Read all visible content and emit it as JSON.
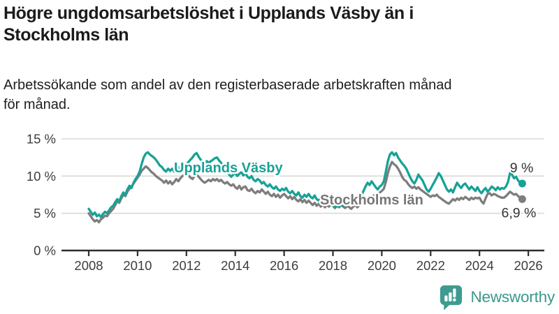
{
  "header": {
    "title_lines": [
      "Högre ungdomsarbetslöshet i Upplands Väsby än i",
      "Stockholms län"
    ],
    "subtitle_lines": [
      "Arbetssökande som andel av den registerbaserade arbetskraften månad",
      "för månad."
    ]
  },
  "footer": {
    "brand": "Newsworthy",
    "logo_icon": "bar-chart-speech-bubble-icon"
  },
  "colors": {
    "accent_teal": "#17a296",
    "series_gray": "#7d7d7d",
    "grid": "#dadada",
    "axis": "#2e2e2e",
    "title_text": "#1b1b1b",
    "tick_text": "#3d3d3d",
    "logo_teal": "#3e9b8f"
  },
  "chart_data": {
    "type": "line",
    "title": "Högre ungdomsarbetslöshet i Upplands Väsby än i Stockholms län",
    "subtitle": "Arbetssökande som andel av den registerbaserade arbetskraften månad för månad.",
    "frequency": "monthly",
    "start_year": 2008,
    "end_point": "2025-10",
    "ylim": [
      0,
      15
    ],
    "grid": "horizontal",
    "legend_position": "inline-labels",
    "y_ticks": [
      {
        "value": 0,
        "label": "0 %"
      },
      {
        "value": 5,
        "label": "5 %"
      },
      {
        "value": 10,
        "label": "10 %"
      },
      {
        "value": 15,
        "label": "15 %"
      }
    ],
    "x_ticks": [
      {
        "value": 2008,
        "label": "2008"
      },
      {
        "value": 2010,
        "label": "2010"
      },
      {
        "value": 2012,
        "label": "2012"
      },
      {
        "value": 2014,
        "label": "2014"
      },
      {
        "value": 2016,
        "label": "2016"
      },
      {
        "value": 2018,
        "label": "2018"
      },
      {
        "value": 2020,
        "label": "2020"
      },
      {
        "value": 2022,
        "label": "2022"
      },
      {
        "value": 2024,
        "label": "2024"
      },
      {
        "value": 2026,
        "label": "2026"
      }
    ],
    "series": [
      {
        "name": "Upplands Väsby",
        "color": "#17a296",
        "end_label": "9 %",
        "end_value": 9.0,
        "values": [
          5.6,
          5.2,
          4.8,
          5.1,
          4.6,
          4.8,
          4.5,
          4.9,
          5.2,
          5.0,
          5.4,
          5.8,
          6.0,
          6.5,
          6.9,
          6.6,
          7.3,
          7.8,
          7.5,
          8.2,
          8.7,
          8.4,
          9.1,
          9.6,
          10.0,
          10.6,
          11.6,
          12.5,
          13.0,
          13.2,
          12.9,
          12.7,
          12.5,
          12.2,
          11.8,
          11.4,
          11.2,
          10.8,
          10.6,
          11.0,
          10.7,
          11.0,
          10.6,
          10.9,
          11.2,
          10.8,
          11.1,
          11.4,
          11.6,
          11.9,
          12.2,
          12.5,
          12.9,
          13.1,
          12.6,
          12.2,
          11.9,
          11.7,
          12.0,
          11.8,
          12.0,
          12.2,
          12.4,
          12.5,
          12.1,
          11.8,
          11.4,
          11.0,
          10.6,
          10.2,
          9.9,
          10.2,
          10.4,
          10.0,
          10.3,
          10.5,
          10.1,
          10.4,
          9.9,
          9.7,
          10.0,
          9.5,
          9.3,
          9.6,
          9.4,
          9.0,
          9.2,
          8.8,
          8.6,
          8.9,
          8.5,
          8.3,
          8.6,
          8.2,
          8.0,
          8.3,
          8.1,
          8.4,
          7.9,
          7.7,
          8.0,
          7.6,
          7.4,
          7.8,
          7.3,
          7.1,
          7.5,
          7.2,
          7.6,
          7.2,
          7.0,
          7.4,
          6.9,
          6.7,
          7.1,
          6.6,
          6.4,
          6.8,
          6.3,
          6.1,
          6.3,
          5.8,
          6.1,
          5.9,
          6.2,
          6.0,
          6.3,
          6.1,
          6.4,
          6.2,
          6.5,
          6.3,
          6.6,
          6.9,
          7.4,
          8.0,
          8.6,
          9.1,
          8.8,
          9.3,
          8.9,
          8.5,
          8.2,
          8.6,
          8.8,
          9.3,
          10.6,
          12.0,
          12.9,
          13.2,
          12.8,
          13.1,
          12.5,
          12.1,
          11.7,
          11.4,
          11.0,
          10.4,
          9.8,
          9.3,
          9.0,
          9.5,
          10.2,
          9.8,
          9.4,
          8.8,
          8.2,
          7.9,
          8.3,
          8.8,
          9.3,
          9.8,
          10.4,
          10.0,
          9.4,
          8.8,
          8.2,
          7.9,
          8.2,
          7.8,
          8.5,
          9.1,
          8.7,
          8.4,
          8.8,
          9.0,
          8.6,
          8.2,
          8.6,
          8.3,
          8.0,
          8.5,
          8.0,
          7.7,
          8.1,
          8.4,
          7.9,
          8.2,
          8.6,
          8.4,
          8.1,
          8.5,
          8.2,
          8.4,
          8.3,
          8.6,
          9.2,
          10.4,
          10.2,
          9.7,
          9.9,
          9.4,
          9.1,
          9.0
        ]
      },
      {
        "name": "Stockholms län",
        "color": "#7d7d7d",
        "end_label": "6,9 %",
        "end_value": 6.9,
        "values": [
          5.0,
          4.6,
          4.2,
          3.9,
          4.1,
          3.8,
          4.2,
          4.4,
          4.7,
          4.6,
          5.0,
          5.3,
          5.6,
          6.1,
          6.6,
          6.4,
          7.0,
          7.5,
          7.3,
          7.9,
          8.3,
          8.6,
          9.0,
          9.4,
          9.8,
          10.2,
          10.7,
          11.0,
          11.3,
          11.1,
          10.8,
          10.5,
          10.3,
          10.0,
          9.8,
          9.6,
          9.4,
          9.1,
          9.4,
          9.0,
          9.3,
          8.9,
          9.2,
          9.6,
          9.3,
          9.7,
          10.0,
          10.2,
          10.4,
          10.1,
          9.8,
          9.6,
          10.0,
          10.2,
          9.9,
          9.6,
          9.3,
          9.1,
          9.3,
          9.5,
          9.3,
          9.6,
          9.4,
          9.6,
          9.3,
          9.5,
          9.2,
          9.0,
          9.2,
          8.9,
          8.7,
          8.9,
          8.5,
          8.3,
          8.7,
          8.2,
          8.5,
          8.6,
          8.1,
          8.0,
          8.3,
          7.9,
          7.7,
          8.0,
          7.8,
          8.2,
          7.9,
          7.6,
          7.9,
          7.5,
          7.3,
          7.6,
          7.2,
          7.5,
          7.1,
          7.4,
          7.6,
          7.3,
          7.0,
          7.3,
          6.9,
          7.2,
          6.8,
          6.6,
          6.9,
          6.5,
          6.8,
          6.4,
          6.7,
          6.4,
          6.1,
          6.4,
          6.0,
          6.3,
          5.9,
          6.2,
          5.8,
          6.1,
          5.9,
          6.2,
          6.0,
          5.7,
          6.0,
          5.8,
          6.1,
          5.9,
          5.7,
          6.0,
          5.8,
          5.6,
          5.9,
          6.1,
          5.8,
          6.1,
          6.4,
          6.2,
          6.6,
          6.9,
          6.7,
          7.1,
          7.4,
          7.2,
          7.6,
          7.8,
          8.0,
          8.3,
          9.2,
          10.4,
          11.3,
          11.9,
          11.6,
          11.4,
          11.0,
          10.5,
          9.9,
          9.5,
          9.3,
          8.9,
          8.6,
          8.4,
          8.6,
          8.3,
          8.5,
          8.2,
          8.0,
          7.8,
          7.6,
          7.4,
          7.2,
          7.4,
          7.3,
          7.5,
          7.2,
          7.0,
          6.8,
          6.6,
          6.4,
          6.3,
          6.6,
          6.9,
          6.7,
          7.0,
          6.8,
          7.1,
          6.9,
          7.2,
          7.0,
          6.8,
          7.1,
          6.9,
          7.1,
          7.0,
          7.1,
          6.6,
          6.3,
          7.0,
          7.6,
          7.7,
          7.4,
          7.6,
          7.5,
          7.3,
          7.2,
          7.1,
          7.1,
          7.3,
          7.6,
          7.9,
          7.7,
          7.5,
          7.6,
          7.3,
          7.1,
          6.9
        ]
      }
    ]
  }
}
